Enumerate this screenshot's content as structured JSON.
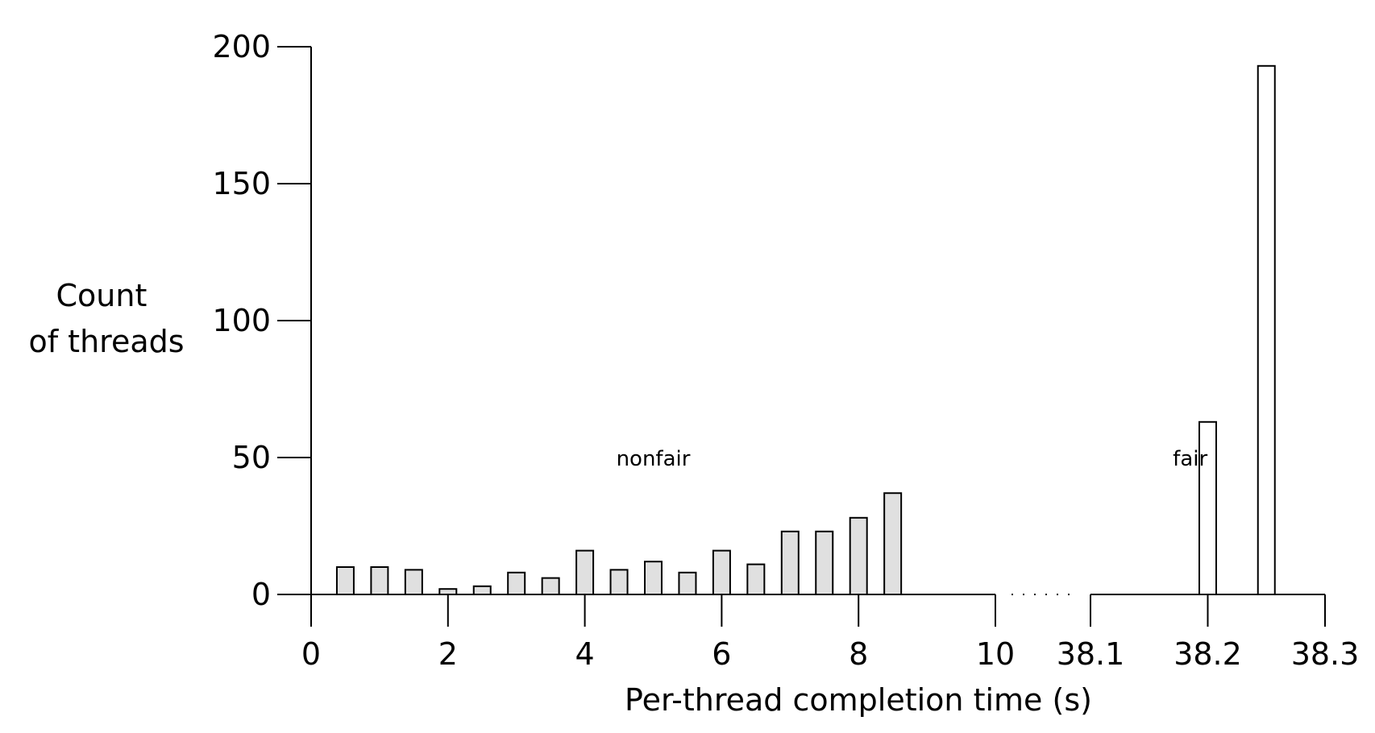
{
  "chart_data": {
    "type": "bar",
    "title": "",
    "xlabel": "Per-thread completion time (s)",
    "ylabel_lines": [
      "Count",
      "of threads"
    ],
    "ylim": [
      0,
      200
    ],
    "yticks": [
      "0",
      "50",
      "100",
      "150",
      "200"
    ],
    "ytick_values": [
      0,
      50,
      100,
      150,
      200
    ],
    "x_segments": [
      {
        "range": [
          0,
          10
        ],
        "ticks": [
          0,
          2,
          4,
          6,
          8,
          10
        ],
        "tick_labels": [
          "0",
          "2",
          "4",
          "6",
          "8",
          "10"
        ]
      },
      {
        "range": [
          38.1,
          38.3
        ],
        "ticks": [
          38.1,
          38.2,
          38.3
        ],
        "tick_labels": [
          "38.1",
          "38.2",
          "38.3"
        ]
      }
    ],
    "series": [
      {
        "name": "nonfair",
        "color": "#e0e0e0",
        "segment": 0,
        "x": [
          0.5,
          1.0,
          1.5,
          2.0,
          2.5,
          3.0,
          3.5,
          4.0,
          4.5,
          5.0,
          5.5,
          6.0,
          6.5,
          7.0,
          7.5,
          8.0,
          8.5
        ],
        "values": [
          10,
          10,
          9,
          2,
          3,
          8,
          6,
          16,
          9,
          12,
          8,
          16,
          11,
          23,
          23,
          28,
          37
        ]
      },
      {
        "name": "fair",
        "color": "#ffffff",
        "segment": 1,
        "x": [
          38.2,
          38.25
        ],
        "values": [
          63,
          193
        ]
      }
    ],
    "annotations": [
      {
        "text": "nonfair",
        "x": 5.0,
        "y": 50
      },
      {
        "text": "fair",
        "x": 38.185,
        "y": 50
      }
    ]
  }
}
